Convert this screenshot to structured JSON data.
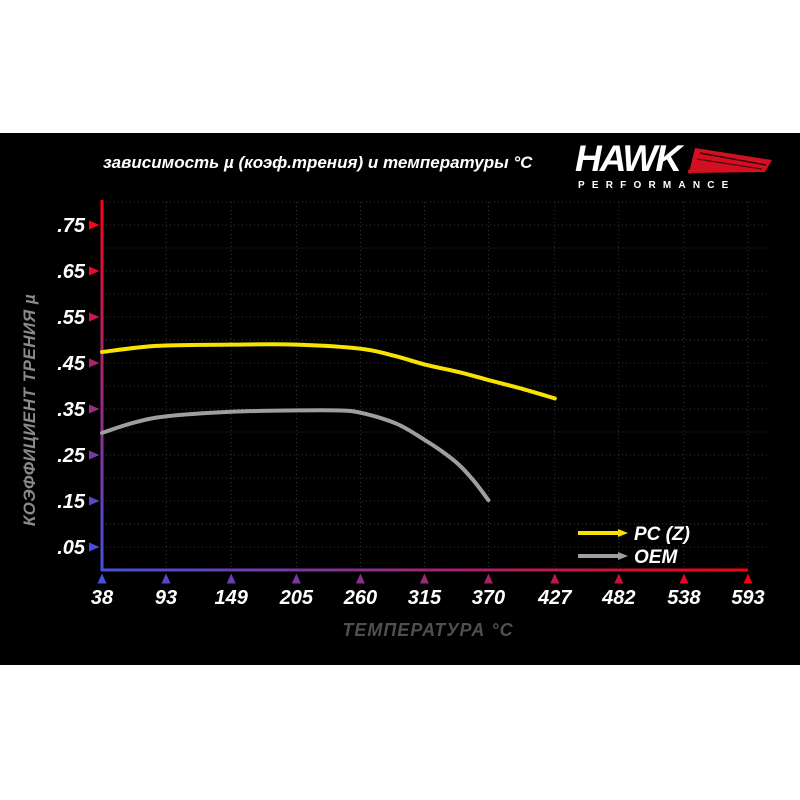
{
  "page": {
    "background": "#ffffff",
    "panel_background": "#000000"
  },
  "header": {
    "title": "зависимость µ (коэф.трения) и температуры °C",
    "logo": {
      "brand": "HAWK",
      "subtitle": "PERFORMANCE",
      "accent_color": "#d31021",
      "text_color": "#ffffff"
    }
  },
  "chart_data": {
    "type": "line",
    "title": "зависимость µ (коэф.трения) и температуры °C",
    "xlabel": "ТЕМПЕРАТУРА °C",
    "ylabel": "КОЭФФИЦИЕНТ ТРЕНИЯ µ",
    "xlim": [
      38,
      593
    ],
    "ylim": [
      0,
      0.8
    ],
    "x_ticks": [
      38,
      93,
      149,
      205,
      260,
      315,
      370,
      427,
      482,
      538,
      593
    ],
    "y_ticks": [
      {
        "label": ".05",
        "value": 0.05
      },
      {
        "label": ".15",
        "value": 0.15
      },
      {
        "label": ".25",
        "value": 0.25
      },
      {
        "label": ".35",
        "value": 0.35
      },
      {
        "label": ".45",
        "value": 0.45
      },
      {
        "label": ".55",
        "value": 0.55
      },
      {
        "label": ".65",
        "value": 0.65
      },
      {
        "label": ".75",
        "value": 0.75
      }
    ],
    "grid": "dotted",
    "grid_color": "#3a3a3a",
    "legend_position": "lower right",
    "axis_gradient": {
      "y_top": "#ff0019",
      "y_bottom": "#4550dd",
      "x_left": "#4550dd",
      "x_right": "#f40010"
    },
    "series": [
      {
        "name": "PC (Z)",
        "color": "#f8e300",
        "x": [
          38,
          70,
          93,
          149,
          205,
          260,
          290,
          315,
          345,
          370,
          400,
          427
        ],
        "y": [
          0.474,
          0.484,
          0.488,
          0.49,
          0.49,
          0.481,
          0.465,
          0.447,
          0.43,
          0.413,
          0.393,
          0.373
        ]
      },
      {
        "name": "OEM",
        "color": "#9e9e9e",
        "x": [
          38,
          65,
          93,
          149,
          205,
          240,
          260,
          291,
          315,
          330,
          345,
          358,
          370
        ],
        "y": [
          0.298,
          0.32,
          0.334,
          0.344,
          0.347,
          0.347,
          0.342,
          0.318,
          0.283,
          0.258,
          0.228,
          0.192,
          0.152
        ]
      }
    ]
  }
}
